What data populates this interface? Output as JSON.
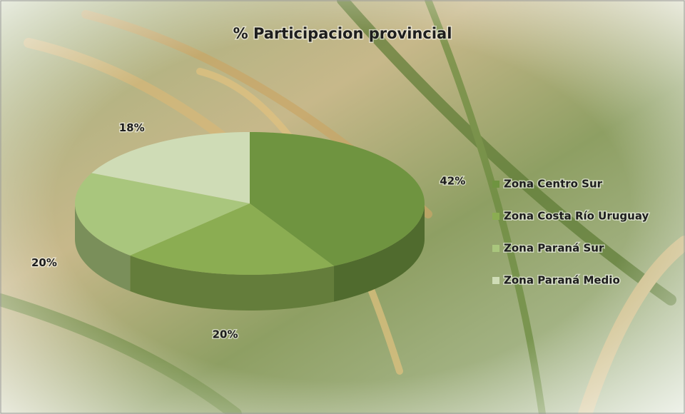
{
  "chart_data": {
    "type": "pie3d",
    "title": "% Participacion provincial",
    "categories": [
      "Zona Centro Sur",
      "Zona Costa Río Uruguay",
      "Zona Paraná Sur",
      "Zona Paraná Medio"
    ],
    "values": [
      42,
      20,
      20,
      18
    ],
    "value_labels": [
      "42%",
      "20%",
      "20%",
      "18%"
    ],
    "colors": [
      "#6f9440",
      "#8bad52",
      "#a9c67d",
      "#cfdcb6"
    ],
    "legend": "right"
  }
}
